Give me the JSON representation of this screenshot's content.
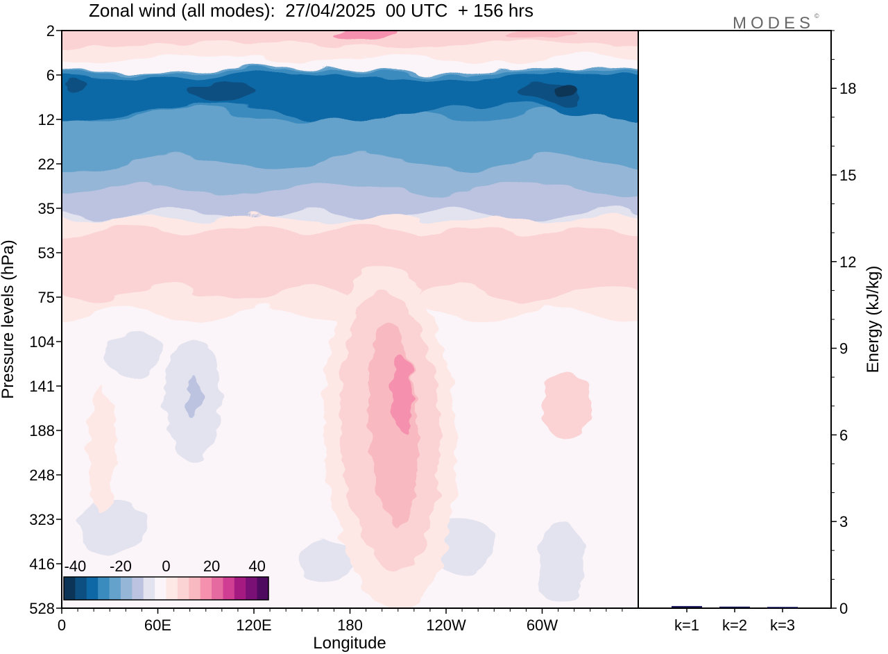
{
  "title": "Zonal wind (all modes):  27/04/2025  00 UTC  + 156 hrs",
  "brand": "MODES",
  "brand_mark": "©",
  "colors": {
    "negative": [
      "#0b3456",
      "#0d4f80",
      "#0f68a6",
      "#3a8bbe",
      "#65a2cb",
      "#95b6d6",
      "#bcc3e0",
      "#e3e3ef"
    ],
    "neutral": "#fbf4f8",
    "positive": [
      "#fde8e6",
      "#fbd3d4",
      "#f8b9c0",
      "#f591ae",
      "#e56aa0",
      "#cf3e92",
      "#a51a81",
      "#7a0f75",
      "#4e0a5e"
    ]
  },
  "chart_data": [
    {
      "type": "heatmap",
      "title": "Zonal wind (all modes):  27/04/2025  00 UTC  + 156 hrs",
      "xlabel": "Longitude",
      "ylabel": "Pressure levels (hPa)",
      "x_ticks": [
        "0",
        "60E",
        "120E",
        "180",
        "120W",
        "60W"
      ],
      "y_ticks": [
        "2",
        "6",
        "12",
        "22",
        "35",
        "53",
        "75",
        "104",
        "141",
        "188",
        "248",
        "323",
        "416",
        "528"
      ],
      "colorbar": {
        "ticks": [
          "-40",
          "-20",
          "0",
          "20",
          "40"
        ],
        "range": [
          -45,
          45
        ],
        "step": 5
      },
      "features": [
        {
          "kind": "stratospheric-easterly-jet",
          "levels_hPa": [
            6,
            12
          ],
          "approx_value": -35
        },
        {
          "kind": "upper-westerly-band",
          "levels_hPa": [
            2,
            3
          ],
          "approx_value": 15
        },
        {
          "kind": "tropopause-westerly-band",
          "levels_hPa": [
            53,
            75
          ],
          "approx_value": 10
        },
        {
          "kind": "westerly-maximum",
          "longitude": "155W",
          "levels_hPa": [
            104,
            248
          ],
          "approx_value": 25
        }
      ]
    },
    {
      "type": "bar",
      "ylabel": "Energy (kJ/kg)",
      "categories": [
        "k=1",
        "k=2",
        "k=3"
      ],
      "values": [
        0.05,
        0.03,
        0.02
      ],
      "ylim": [
        0,
        20
      ],
      "y_ticks": [
        "0",
        "3",
        "6",
        "9",
        "12",
        "15",
        "18"
      ]
    }
  ]
}
